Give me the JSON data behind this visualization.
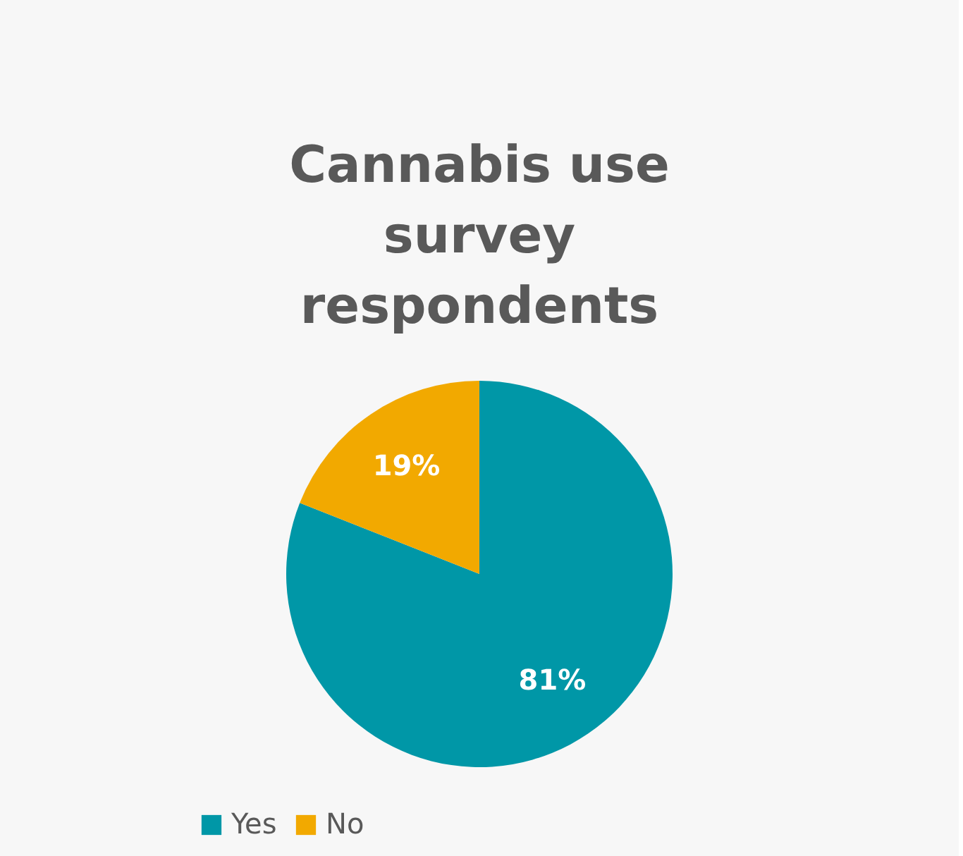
{
  "chart_data": {
    "type": "pie",
    "title": "Cannabis use survey respondents",
    "categories": [
      "Yes",
      "No"
    ],
    "values": [
      81,
      19
    ],
    "colors": [
      "#0097a7",
      "#f2a900"
    ],
    "value_labels": [
      "81%",
      "19%"
    ],
    "legend": "bottom"
  }
}
